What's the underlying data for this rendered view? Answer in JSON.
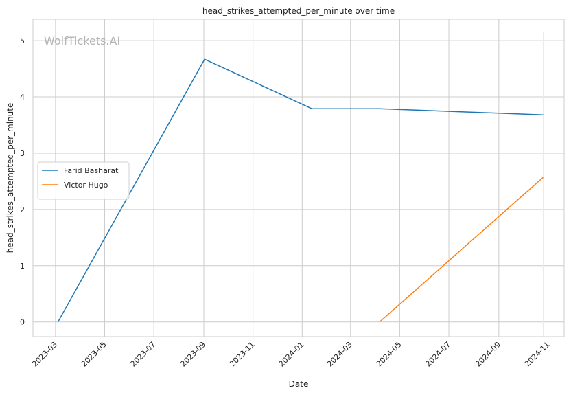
{
  "watermark": "WolfTickets.AI",
  "chart_data": {
    "type": "line",
    "title": "head_strikes_attempted_per_minute over time",
    "xlabel": "Date",
    "ylabel": "head_strikes_attempted_per_minute",
    "x_axis_type": "date",
    "xlim": [
      "2023-02-01",
      "2024-11-21"
    ],
    "ylim": [
      -0.26,
      5.38
    ],
    "x_ticks": [
      "2023-03",
      "2023-05",
      "2023-07",
      "2023-09",
      "2023-11",
      "2024-01",
      "2024-03",
      "2024-05",
      "2024-07",
      "2024-09",
      "2024-11"
    ],
    "x_tick_dates": [
      "2023-03-01",
      "2023-05-01",
      "2023-07-01",
      "2023-09-01",
      "2023-11-01",
      "2024-01-01",
      "2024-03-01",
      "2024-05-01",
      "2024-07-01",
      "2024-09-01",
      "2024-11-01"
    ],
    "y_ticks": [
      0,
      1,
      2,
      3,
      4,
      5
    ],
    "grid": true,
    "legend_position": "center-left",
    "series": [
      {
        "name": "Farid Basharat",
        "color": "#1f77b4",
        "points": [
          {
            "x": "2023-03-04",
            "y": 0.0
          },
          {
            "x": "2023-09-02",
            "y": 4.67
          },
          {
            "x": "2024-01-13",
            "y": 3.79
          },
          {
            "x": "2024-04-06",
            "y": 3.79
          },
          {
            "x": "2024-10-26",
            "y": 3.68
          }
        ]
      },
      {
        "name": "Victor Hugo",
        "color": "#ff7f0e",
        "points": [
          {
            "x": "2024-04-06",
            "y": 0.0
          },
          {
            "x": "2024-10-26",
            "y": 2.57
          }
        ]
      }
    ],
    "reference_lines": [
      {
        "x": "2024-10-26",
        "color": "#ffe8c2"
      }
    ]
  }
}
